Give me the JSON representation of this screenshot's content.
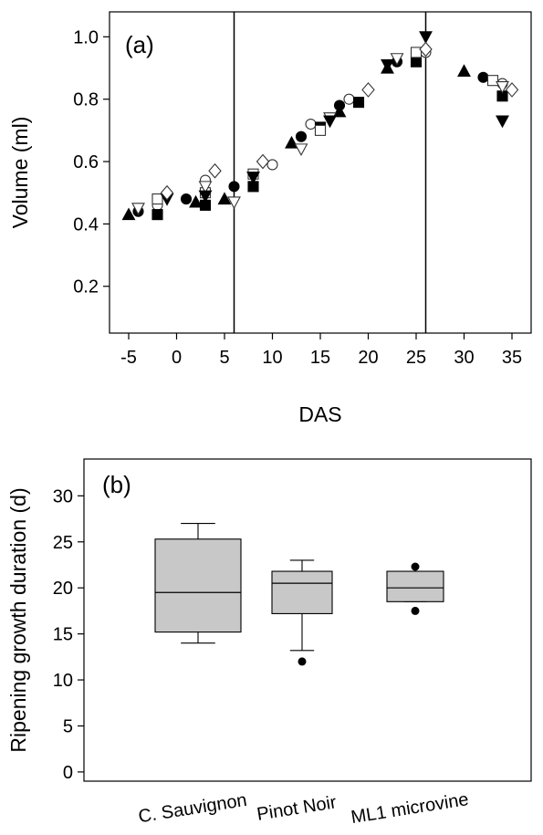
{
  "chart_data": [
    {
      "panel": "(a)",
      "type": "scatter",
      "xlabel": "DAS",
      "ylabel": "Volume (ml)",
      "xlim": [
        -7,
        37
      ],
      "ylim": [
        0.05,
        1.08
      ],
      "xticks": [
        "-5",
        "0",
        "5",
        "10",
        "15",
        "20",
        "25",
        "30",
        "35"
      ],
      "yticks": [
        "0.2",
        "0.4",
        "0.6",
        "0.8",
        "1.0"
      ],
      "vlines": [
        6,
        26
      ],
      "grid": false,
      "series": [
        {
          "marker": "filled-circle",
          "points": [
            [
              -4,
              0.44
            ],
            [
              -2,
              0.47
            ],
            [
              1,
              0.48
            ],
            [
              6,
              0.52
            ],
            [
              13,
              0.68
            ],
            [
              17,
              0.78
            ],
            [
              23,
              0.92
            ],
            [
              32,
              0.87
            ]
          ]
        },
        {
          "marker": "open-circle",
          "points": [
            [
              -2,
              0.46
            ],
            [
              3,
              0.54
            ],
            [
              10,
              0.59
            ],
            [
              14,
              0.72
            ],
            [
              18,
              0.8
            ],
            [
              26,
              0.95
            ],
            [
              34,
              0.85
            ]
          ]
        },
        {
          "marker": "filled-square",
          "points": [
            [
              -2,
              0.43
            ],
            [
              3,
              0.46
            ],
            [
              8,
              0.52
            ],
            [
              15,
              0.71
            ],
            [
              19,
              0.79
            ],
            [
              25,
              0.92
            ],
            [
              34,
              0.81
            ]
          ]
        },
        {
          "marker": "open-square",
          "points": [
            [
              -2,
              0.48
            ],
            [
              3,
              0.5
            ],
            [
              8,
              0.56
            ],
            [
              15,
              0.7
            ],
            [
              25,
              0.95
            ],
            [
              33,
              0.86
            ]
          ]
        },
        {
          "marker": "filled-triangle-up",
          "points": [
            [
              -5,
              0.43
            ],
            [
              2,
              0.47
            ],
            [
              5,
              0.48
            ],
            [
              12,
              0.66
            ],
            [
              17,
              0.76
            ],
            [
              22,
              0.9
            ],
            [
              30,
              0.89
            ]
          ]
        },
        {
          "marker": "open-triangle-down",
          "points": [
            [
              -4,
              0.45
            ],
            [
              3,
              0.52
            ],
            [
              6,
              0.47
            ],
            [
              13,
              0.64
            ],
            [
              16,
              0.74
            ],
            [
              23,
              0.93
            ],
            [
              34,
              0.84
            ]
          ]
        },
        {
          "marker": "filled-triangle-down",
          "points": [
            [
              -1,
              0.48
            ],
            [
              3,
              0.49
            ],
            [
              8,
              0.55
            ],
            [
              16,
              0.73
            ],
            [
              22,
              0.91
            ],
            [
              26,
              1.0
            ],
            [
              34,
              0.73
            ]
          ]
        },
        {
          "marker": "open-diamond",
          "points": [
            [
              -1,
              0.5
            ],
            [
              4,
              0.57
            ],
            [
              9,
              0.6
            ],
            [
              20,
              0.83
            ],
            [
              26,
              0.96
            ],
            [
              35,
              0.83
            ]
          ]
        }
      ]
    },
    {
      "panel": "(b)",
      "type": "box",
      "xlabel": "",
      "ylabel": "Ripening growth duration (d)",
      "ylim": [
        -1,
        34
      ],
      "yticks": [
        "0",
        "5",
        "10",
        "15",
        "20",
        "25",
        "30"
      ],
      "categories": [
        "C. Sauvignon",
        "Pinot Noir",
        "ML1 microvine"
      ],
      "boxes": [
        {
          "category": "C. Sauvignon",
          "whisker_low": 14,
          "q1": 15.2,
          "median": 19.5,
          "q3": 25.3,
          "whisker_high": 27,
          "outliers": []
        },
        {
          "category": "Pinot Noir",
          "whisker_low": 13.2,
          "q1": 17.2,
          "median": 20.5,
          "q3": 21.8,
          "whisker_high": 23,
          "outliers": [
            12
          ]
        },
        {
          "category": "ML1 microvine",
          "whisker_low": 18.5,
          "q1": 18.5,
          "median": 20,
          "q3": 21.8,
          "whisker_high": 21.8,
          "outliers": [
            22.3,
            17.5
          ]
        }
      ],
      "box_color": "#c8c8c8"
    }
  ]
}
